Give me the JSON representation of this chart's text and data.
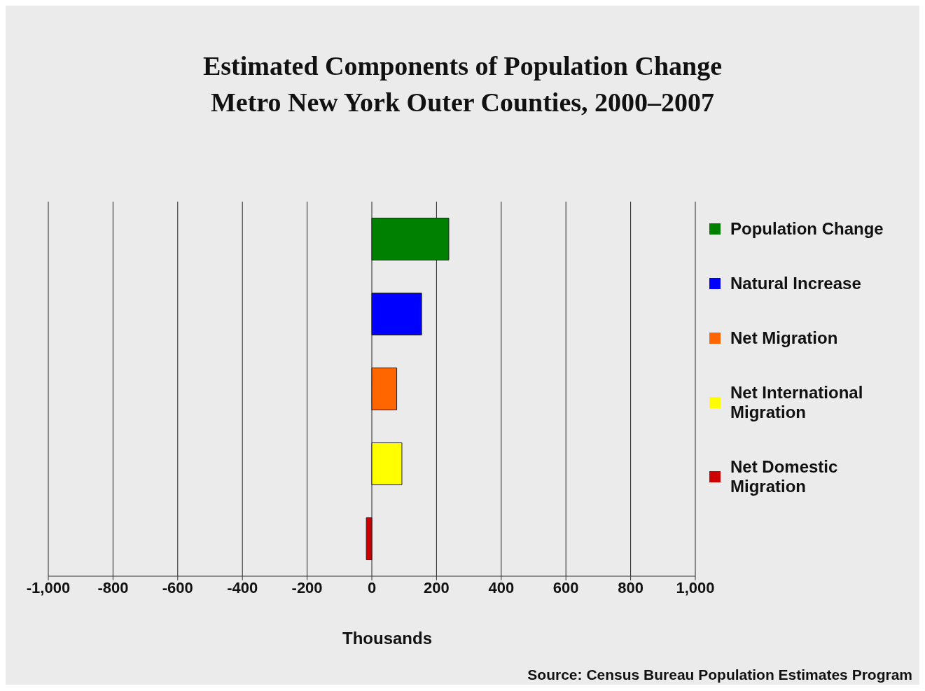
{
  "chart_data": {
    "type": "bar",
    "orientation": "horizontal",
    "stacked": true,
    "title": "Estimated Components of Population Change\nMetro New York Outer Counties, 2000–2007",
    "xlabel": "Thousands",
    "categories": [
      null,
      null,
      null,
      null,
      null
    ],
    "series": [
      {
        "name": "Population Change",
        "color": "#008000",
        "values": [
          238,
          null,
          null,
          null,
          null
        ]
      },
      {
        "name": "Natural Increase",
        "color": "#0000ff",
        "values": [
          null,
          154,
          null,
          null,
          null
        ]
      },
      {
        "name": "Net Migration",
        "color": "#ff6600",
        "values": [
          null,
          null,
          77,
          null,
          null
        ]
      },
      {
        "name": "Net International Migration",
        "color": "#ffff00",
        "values": [
          null,
          null,
          null,
          93,
          null
        ]
      },
      {
        "name": "Net Domestic Migration",
        "color": "#cc0000",
        "values": [
          null,
          null,
          null,
          null,
          -17
        ]
      }
    ],
    "xlim": [
      -1000,
      1000
    ],
    "xticks": [
      {
        "value": -1000,
        "label": "-1,000"
      },
      -800,
      -600,
      -400,
      -200,
      0,
      200,
      400,
      600,
      800,
      {
        "value": 1000,
        "label": "1,000"
      }
    ],
    "grid": "x",
    "legend": "right",
    "annotations": [
      "Source: Census Bureau Population Estimates Program"
    ]
  }
}
